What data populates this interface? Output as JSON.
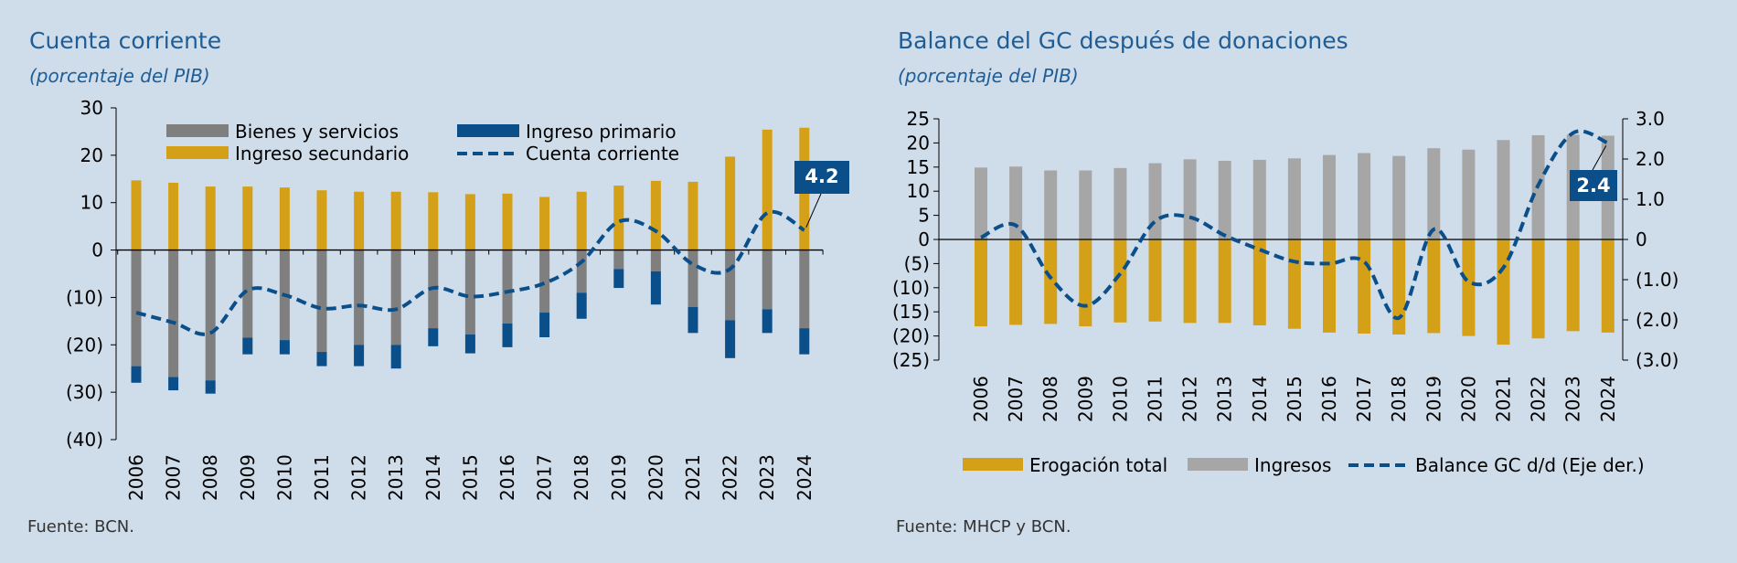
{
  "left": {
    "title": "Cuenta corriente",
    "subtitle": "(porcentaje del PIB)",
    "source": "Fuente: BCN.",
    "chart_data": {
      "type": "bar",
      "stacked": true,
      "categories": [
        "2006",
        "2007",
        "2008",
        "2009",
        "2010",
        "2011",
        "2012",
        "2013",
        "2014",
        "2015",
        "2016",
        "2017",
        "2018",
        "2019",
        "2020",
        "2021",
        "2022",
        "2023",
        "2024"
      ],
      "yticks": [
        "30",
        "20",
        "10",
        "0",
        "(10)",
        "(20)",
        "(30)",
        "(40)"
      ],
      "ylim": [
        -40,
        30
      ],
      "grid": false,
      "legend_position": "top",
      "series": [
        {
          "name": "Bienes y servicios",
          "kind": "bar",
          "color": "#7f7f7f",
          "values": [
            -24.5,
            -26.8,
            -27.5,
            -18.5,
            -19.0,
            -21.5,
            -20.0,
            -20.0,
            -16.5,
            -17.8,
            -15.5,
            -13.2,
            -9.0,
            -4.0,
            -4.5,
            -12.0,
            -14.8,
            -12.5,
            -16.5
          ]
        },
        {
          "name": "Ingreso primario",
          "kind": "bar",
          "color": "#0b4f8a",
          "values": [
            -3.5,
            -2.8,
            -2.8,
            -3.5,
            -3.0,
            -3.0,
            -4.5,
            -5.0,
            -3.8,
            -4.0,
            -5.0,
            -5.2,
            -5.5,
            -4.0,
            -7.0,
            -5.5,
            -8.0,
            -5.0,
            -5.5
          ]
        },
        {
          "name": "Ingreso secundario",
          "kind": "bar",
          "color": "#d4a017",
          "values": [
            14.7,
            14.2,
            13.4,
            13.4,
            13.2,
            12.6,
            12.3,
            12.3,
            12.2,
            11.8,
            11.9,
            11.2,
            12.3,
            13.6,
            14.6,
            14.4,
            19.7,
            25.4,
            25.8
          ]
        },
        {
          "name": "Cuenta corriente",
          "kind": "line",
          "color": "#0b4f8a",
          "values": [
            -13.2,
            -15.3,
            -17.5,
            -8.5,
            -9.5,
            -12.3,
            -11.7,
            -12.5,
            -8.0,
            -9.8,
            -8.8,
            -7.0,
            -2.5,
            6.0,
            4.0,
            -3.0,
            -4.0,
            7.8,
            4.2
          ]
        }
      ],
      "annotation": {
        "label": "4.2",
        "category": "2024"
      }
    }
  },
  "right": {
    "title": "Balance del GC después de donaciones",
    "subtitle": "(porcentaje del PIB)",
    "source": "Fuente: MHCP y BCN.",
    "chart_data": {
      "type": "bar",
      "categories": [
        "2006",
        "2007",
        "2008",
        "2009",
        "2010",
        "2011",
        "2012",
        "2013",
        "2014",
        "2015",
        "2016",
        "2017",
        "2018",
        "2019",
        "2020",
        "2021",
        "2022",
        "2023",
        "2024"
      ],
      "yticks_left": [
        "25",
        "20",
        "15",
        "10",
        "5",
        "0",
        "(5)",
        "(10)",
        "(15)",
        "(20)",
        "(25)"
      ],
      "ylim_left": [
        -25,
        25
      ],
      "yticks_right": [
        "3.0",
        "2.0",
        "1.0",
        "0",
        "(1.0)",
        "(2.0)",
        "(3.0)"
      ],
      "ylim_right": [
        -3,
        3
      ],
      "grid": false,
      "legend_position": "bottom",
      "series": [
        {
          "name": "Erogación total",
          "kind": "bar",
          "axis": "left",
          "color": "#d4a017",
          "values": [
            -18.0,
            -17.7,
            -17.5,
            -18.0,
            -17.2,
            -17.0,
            -17.3,
            -17.3,
            -17.8,
            -18.5,
            -19.3,
            -19.5,
            -19.7,
            -19.4,
            -20.0,
            -21.8,
            -20.5,
            -19.0,
            -19.3
          ]
        },
        {
          "name": "Ingresos",
          "kind": "bar",
          "axis": "left",
          "color": "#a6a6a6",
          "values": [
            14.9,
            15.1,
            14.3,
            14.3,
            14.8,
            15.8,
            16.6,
            16.3,
            16.5,
            16.8,
            17.5,
            17.9,
            17.3,
            18.9,
            18.6,
            20.6,
            21.6,
            21.7,
            21.5
          ]
        },
        {
          "name": "Balance GC d/d (Eje der.)",
          "kind": "line",
          "axis": "right",
          "color": "#0b4f8a",
          "values": [
            0.05,
            0.35,
            -0.95,
            -1.65,
            -0.85,
            0.45,
            0.55,
            0.1,
            -0.25,
            -0.55,
            -0.6,
            -0.55,
            -1.95,
            0.25,
            -1.05,
            -0.7,
            1.35,
            2.65,
            2.4
          ]
        }
      ],
      "annotation": {
        "label": "2.4",
        "category": "2024"
      }
    }
  }
}
